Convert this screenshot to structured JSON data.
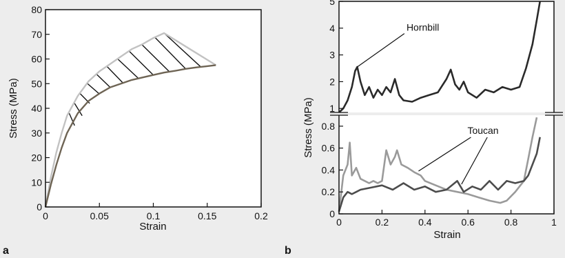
{
  "chart_data": [
    {
      "panel_label": "a",
      "type": "line",
      "xlabel": "Strain",
      "ylabel": "Stress (MPa)",
      "xlim": [
        0,
        0.2
      ],
      "ylim": [
        0,
        80
      ],
      "x_ticks": [
        "0",
        "0.05",
        "0.1",
        "0.15",
        "0.2"
      ],
      "y_ticks": [
        "0",
        "10",
        "20",
        "30",
        "40",
        "50",
        "60",
        "70",
        "80"
      ],
      "grid": false,
      "hatched_region": true,
      "series": [
        {
          "color": "#c2c2c2",
          "points": [
            [
              0.0,
              0
            ],
            [
              0.005,
              12
            ],
            [
              0.01,
              22
            ],
            [
              0.015,
              30
            ],
            [
              0.02,
              37
            ],
            [
              0.03,
              45
            ],
            [
              0.04,
              51
            ],
            [
              0.05,
              55
            ],
            [
              0.06,
              58
            ],
            [
              0.07,
              61
            ],
            [
              0.08,
              64
            ],
            [
              0.09,
              66
            ],
            [
              0.1,
              68.5
            ],
            [
              0.11,
              70.5
            ],
            [
              0.158,
              57.5
            ]
          ]
        },
        {
          "color": "#6e6454",
          "points": [
            [
              0.0,
              0
            ],
            [
              0.005,
              9
            ],
            [
              0.01,
              17
            ],
            [
              0.015,
              24
            ],
            [
              0.02,
              30
            ],
            [
              0.03,
              38
            ],
            [
              0.04,
              43
            ],
            [
              0.05,
              46
            ],
            [
              0.06,
              48.5
            ],
            [
              0.07,
              50
            ],
            [
              0.08,
              51.5
            ],
            [
              0.09,
              52.5
            ],
            [
              0.1,
              53.5
            ],
            [
              0.11,
              54.5
            ],
            [
              0.12,
              55.2
            ],
            [
              0.13,
              56
            ],
            [
              0.14,
              56.6
            ],
            [
              0.15,
              57.1
            ],
            [
              0.158,
              57.5
            ]
          ]
        }
      ],
      "hatch_lines": [
        [
          [
            0.022,
            38
          ],
          [
            0.027,
            33
          ]
        ],
        [
          [
            0.027,
            42
          ],
          [
            0.034,
            37
          ]
        ],
        [
          [
            0.032,
            46
          ],
          [
            0.041,
            42
          ]
        ],
        [
          [
            0.039,
            50
          ],
          [
            0.05,
            45.8
          ]
        ],
        [
          [
            0.047,
            54
          ],
          [
            0.06,
            48.5
          ]
        ],
        [
          [
            0.057,
            57
          ],
          [
            0.072,
            50.2
          ]
        ],
        [
          [
            0.067,
            60
          ],
          [
            0.086,
            52.2
          ]
        ],
        [
          [
            0.078,
            63
          ],
          [
            0.1,
            53.5
          ]
        ],
        [
          [
            0.089,
            66
          ],
          [
            0.115,
            54.8
          ]
        ],
        [
          [
            0.101,
            69
          ],
          [
            0.13,
            56
          ]
        ],
        [
          [
            0.11,
            70.5
          ],
          [
            0.144,
            56.8
          ]
        ]
      ]
    },
    {
      "panel_label": "b",
      "type": "line",
      "xlabel": "Strain",
      "ylabel": "Stress (MPa)",
      "xlim": [
        0,
        1
      ],
      "x_ticks": [
        "0",
        "0.2",
        "0.4",
        "0.6",
        "0.8",
        "1"
      ],
      "broken_y_axis": true,
      "upper_ylim": [
        0.85,
        5
      ],
      "upper_y_ticks": [
        "1",
        "2",
        "3",
        "4",
        "5"
      ],
      "lower_ylim": [
        0,
        0.9
      ],
      "lower_y_ticks": [
        "0",
        "0.2",
        "0.4",
        "0.6",
        "0.8"
      ],
      "grid": false,
      "annotations": [
        {
          "text": "Hornbill",
          "at": [
            0.39,
            3.9
          ],
          "points_to": [
            [
              0.085,
              2.55
            ]
          ]
        },
        {
          "text": "Toucan",
          "at": [
            0.67,
            0.73
          ],
          "points_to": [
            [
              0.37,
              0.39
            ],
            [
              0.57,
              0.27
            ]
          ]
        }
      ],
      "series": [
        {
          "name": "Hornbill",
          "color": "#2a2a2a",
          "panel": "upper",
          "points": [
            [
              0.0,
              0.85
            ],
            [
              0.02,
              1.0
            ],
            [
              0.04,
              1.3
            ],
            [
              0.06,
              1.8
            ],
            [
              0.075,
              2.4
            ],
            [
              0.085,
              2.55
            ],
            [
              0.1,
              2.0
            ],
            [
              0.12,
              1.5
            ],
            [
              0.14,
              1.8
            ],
            [
              0.16,
              1.4
            ],
            [
              0.18,
              1.7
            ],
            [
              0.2,
              1.5
            ],
            [
              0.22,
              1.8
            ],
            [
              0.24,
              1.6
            ],
            [
              0.26,
              2.1
            ],
            [
              0.28,
              1.5
            ],
            [
              0.3,
              1.3
            ],
            [
              0.34,
              1.25
            ],
            [
              0.38,
              1.4
            ],
            [
              0.42,
              1.5
            ],
            [
              0.46,
              1.6
            ],
            [
              0.5,
              2.1
            ],
            [
              0.52,
              2.45
            ],
            [
              0.54,
              1.9
            ],
            [
              0.56,
              1.7
            ],
            [
              0.58,
              2.0
            ],
            [
              0.6,
              1.6
            ],
            [
              0.64,
              1.4
            ],
            [
              0.68,
              1.7
            ],
            [
              0.72,
              1.6
            ],
            [
              0.76,
              1.8
            ],
            [
              0.8,
              1.7
            ],
            [
              0.84,
              1.8
            ],
            [
              0.87,
              2.5
            ],
            [
              0.9,
              3.4
            ],
            [
              0.92,
              4.3
            ],
            [
              0.935,
              5.0
            ]
          ]
        },
        {
          "name": "Toucan",
          "color": "#9a9a9a",
          "panel": "lower",
          "points": [
            [
              0.0,
              0.02
            ],
            [
              0.02,
              0.35
            ],
            [
              0.04,
              0.45
            ],
            [
              0.05,
              0.65
            ],
            [
              0.06,
              0.35
            ],
            [
              0.08,
              0.42
            ],
            [
              0.1,
              0.32
            ],
            [
              0.12,
              0.3
            ],
            [
              0.14,
              0.28
            ],
            [
              0.16,
              0.3
            ],
            [
              0.18,
              0.28
            ],
            [
              0.2,
              0.3
            ],
            [
              0.22,
              0.58
            ],
            [
              0.24,
              0.45
            ],
            [
              0.26,
              0.52
            ],
            [
              0.27,
              0.58
            ],
            [
              0.29,
              0.45
            ],
            [
              0.32,
              0.42
            ],
            [
              0.35,
              0.38
            ],
            [
              0.38,
              0.35
            ],
            [
              0.4,
              0.3
            ],
            [
              0.45,
              0.26
            ],
            [
              0.5,
              0.22
            ],
            [
              0.55,
              0.2
            ],
            [
              0.6,
              0.18
            ],
            [
              0.65,
              0.15
            ],
            [
              0.7,
              0.12
            ],
            [
              0.75,
              0.1
            ],
            [
              0.78,
              0.12
            ],
            [
              0.82,
              0.2
            ],
            [
              0.86,
              0.3
            ],
            [
              0.88,
              0.5
            ],
            [
              0.9,
              0.7
            ],
            [
              0.92,
              0.88
            ]
          ]
        },
        {
          "name": "Toucan",
          "color": "#4c4c4c",
          "panel": "lower",
          "points": [
            [
              0.0,
              0.02
            ],
            [
              0.02,
              0.15
            ],
            [
              0.04,
              0.2
            ],
            [
              0.06,
              0.18
            ],
            [
              0.08,
              0.2
            ],
            [
              0.1,
              0.22
            ],
            [
              0.15,
              0.24
            ],
            [
              0.2,
              0.26
            ],
            [
              0.25,
              0.22
            ],
            [
              0.3,
              0.28
            ],
            [
              0.35,
              0.22
            ],
            [
              0.4,
              0.25
            ],
            [
              0.45,
              0.2
            ],
            [
              0.5,
              0.22
            ],
            [
              0.55,
              0.3
            ],
            [
              0.58,
              0.2
            ],
            [
              0.62,
              0.25
            ],
            [
              0.66,
              0.22
            ],
            [
              0.7,
              0.3
            ],
            [
              0.74,
              0.22
            ],
            [
              0.78,
              0.3
            ],
            [
              0.82,
              0.28
            ],
            [
              0.86,
              0.3
            ],
            [
              0.88,
              0.35
            ],
            [
              0.9,
              0.45
            ],
            [
              0.92,
              0.55
            ],
            [
              0.935,
              0.7
            ]
          ]
        }
      ]
    }
  ]
}
